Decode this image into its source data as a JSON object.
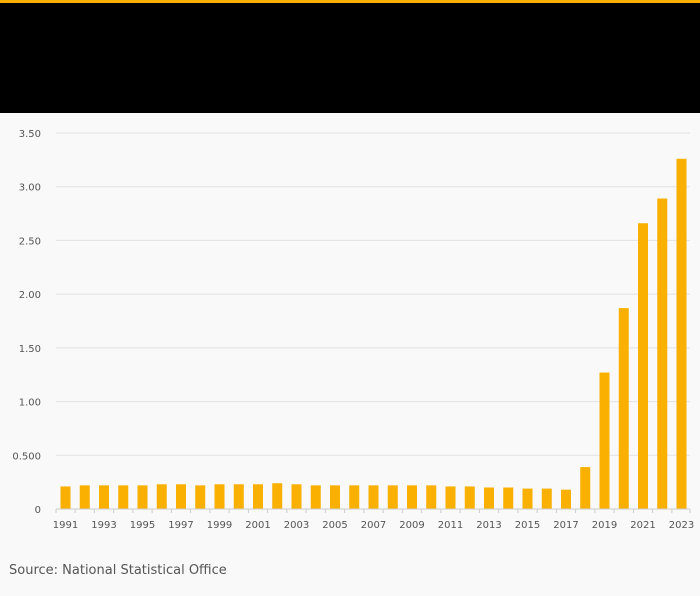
{
  "colors": {
    "accent": "#f9b000",
    "header_band": "#000000",
    "bar": "#f9b000",
    "background": "#f9f9f9",
    "grid": "#e2e2e2",
    "axis": "#cccccc",
    "text": "#555555"
  },
  "source": "Source: National Statistical Office",
  "chart_data": {
    "type": "bar",
    "title": "",
    "xlabel": "",
    "ylabel": "",
    "ylim": [
      0,
      3.5
    ],
    "grid": true,
    "legend": "none",
    "y_ticks": [
      {
        "value": 0,
        "label": "0"
      },
      {
        "value": 0.5,
        "label": "0.500"
      },
      {
        "value": 1.0,
        "label": "1.00"
      },
      {
        "value": 1.5,
        "label": "1.50"
      },
      {
        "value": 2.0,
        "label": "2.00"
      },
      {
        "value": 2.5,
        "label": "2.50"
      },
      {
        "value": 3.0,
        "label": "3.00"
      },
      {
        "value": 3.5,
        "label": "3.50"
      }
    ],
    "x_tick_labels": [
      "1991",
      "1993",
      "1995",
      "1997",
      "1999",
      "2001",
      "2003",
      "2005",
      "2007",
      "2009",
      "2011",
      "2013",
      "2015",
      "2017",
      "2019",
      "2021",
      "2023"
    ],
    "categories": [
      "1991",
      "1992",
      "1993",
      "1994",
      "1995",
      "1996",
      "1997",
      "1998",
      "1999",
      "2000",
      "2001",
      "2002",
      "2003",
      "2004",
      "2005",
      "2006",
      "2007",
      "2008",
      "2009",
      "2010",
      "2011",
      "2012",
      "2013",
      "2014",
      "2015",
      "2016",
      "2017",
      "2018",
      "2019",
      "2020",
      "2021",
      "2022",
      "2023"
    ],
    "values": [
      0.21,
      0.22,
      0.22,
      0.22,
      0.22,
      0.23,
      0.23,
      0.22,
      0.23,
      0.23,
      0.23,
      0.24,
      0.23,
      0.22,
      0.22,
      0.22,
      0.22,
      0.22,
      0.22,
      0.22,
      0.21,
      0.21,
      0.2,
      0.2,
      0.19,
      0.19,
      0.18,
      0.39,
      1.27,
      1.87,
      2.66,
      2.89,
      3.26
    ]
  }
}
